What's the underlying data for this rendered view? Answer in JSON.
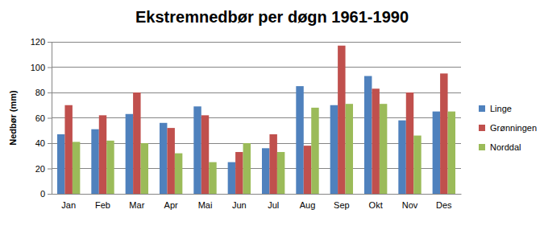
{
  "chart_data": {
    "type": "bar",
    "title": "Ekstremnedbør per døgn 1961-1990",
    "y_label": "Nedbør (mm)",
    "categories": [
      "Jan",
      "Feb",
      "Mar",
      "Apr",
      "Mai",
      "Jun",
      "Jul",
      "Aug",
      "Sep",
      "Okt",
      "Nov",
      "Des"
    ],
    "series": [
      {
        "name": "Linge",
        "color": "#4f81bd",
        "values": [
          47,
          51,
          63,
          56,
          69,
          25,
          36,
          85,
          70,
          93,
          58,
          65
        ]
      },
      {
        "name": "Grønningen",
        "color": "#c0504d",
        "values": [
          70,
          62,
          80,
          52,
          62,
          33,
          47,
          38,
          117,
          83,
          80,
          95
        ]
      },
      {
        "name": "Norddal",
        "color": "#9bbb59",
        "values": [
          41,
          42,
          40,
          32,
          25,
          40,
          33,
          68,
          71,
          71,
          46,
          65
        ]
      }
    ],
    "ylim": [
      0,
      120
    ],
    "yticks": [
      0,
      20,
      40,
      60,
      80,
      100,
      120
    ],
    "grid": true,
    "legend": "right"
  }
}
